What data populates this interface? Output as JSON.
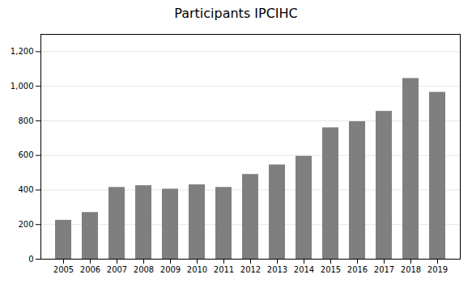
{
  "chart_data": {
    "type": "bar",
    "title": "Participants IPCIHC",
    "categories": [
      "2005",
      "2006",
      "2007",
      "2008",
      "2009",
      "2010",
      "2011",
      "2012",
      "2013",
      "2014",
      "2015",
      "2016",
      "2017",
      "2018",
      "2019"
    ],
    "values": [
      225,
      270,
      415,
      425,
      405,
      430,
      415,
      490,
      545,
      595,
      760,
      795,
      855,
      1045,
      965
    ],
    "color": "#7f7f7f",
    "ylim": [
      0,
      1300
    ],
    "yticks": [
      0,
      200,
      400,
      600,
      800,
      1000,
      1200
    ],
    "grid": true
  }
}
